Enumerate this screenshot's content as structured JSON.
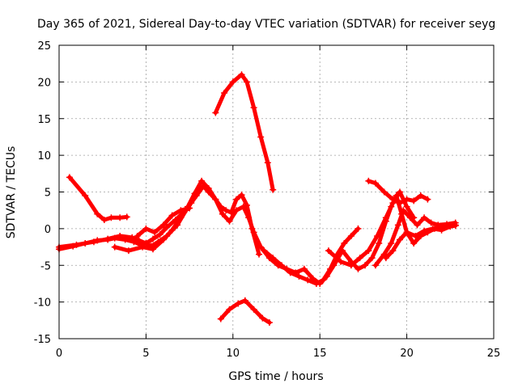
{
  "chart_data": {
    "type": "scatter",
    "title": "Day 365 of 2021, Sidereal Day-to-day VTEC variation (SDTVAR) for receiver seyg",
    "xlabel": "GPS time / hours",
    "ylabel": "SDTVAR / TECUs",
    "xlim": [
      0,
      25
    ],
    "ylim": [
      -15,
      25
    ],
    "xticks": [
      "0",
      "5",
      "10",
      "15",
      "20",
      "25"
    ],
    "yticks": [
      "25",
      "20",
      "15",
      "10",
      "5",
      "0",
      "-5",
      "-10",
      "-15"
    ],
    "grid": true,
    "color": "#ff0000",
    "series": [
      {
        "name": "track-1",
        "x": [
          0.6,
          1.5,
          2.2,
          2.6,
          3.0,
          3.5,
          3.9
        ],
        "y": [
          7,
          4.5,
          2,
          1.2,
          1.5,
          1.5,
          1.6
        ]
      },
      {
        "name": "track-2",
        "x": [
          0,
          0.8,
          1.5,
          2.2,
          2.8,
          3.2,
          3.8,
          4.3,
          4.7,
          5.0,
          5.4,
          5.8,
          6.2,
          6.7,
          7.2,
          7.6,
          7.9,
          8.3,
          8.6,
          9.0,
          9.3,
          9.6,
          9.9,
          10.2,
          10.5,
          10.8,
          11.1,
          11.5
        ],
        "y": [
          -2.8,
          -2.4,
          -2.0,
          -1.6,
          -1.5,
          -1.3,
          -1.5,
          -1.8,
          -2.2,
          -2.0,
          -1.4,
          -0.8,
          0.2,
          1.2,
          2.3,
          3.5,
          4.5,
          5.8,
          5.0,
          4.0,
          3.0,
          2.5,
          2.2,
          4.0,
          4.6,
          3.2,
          0.0,
          -3.5
        ]
      },
      {
        "name": "track-3",
        "x": [
          0,
          1.0,
          2.0,
          2.8,
          3.5,
          4.2,
          4.6,
          5.0,
          5.3,
          5.7,
          6.2,
          6.8,
          7.3,
          7.8,
          8.2,
          8.6,
          9.0,
          9.4,
          9.8,
          10.2,
          10.6,
          10.9,
          11.2,
          11.6,
          12.1,
          12.6,
          13.1,
          13.6,
          14.1,
          14.6,
          15.0,
          15.4,
          15.8,
          16.3,
          16.8,
          17.2,
          17.6,
          18.0,
          18.4,
          18.8,
          19.1,
          19.4,
          19.7,
          20.0,
          20.4,
          20.8,
          21.2,
          21.6,
          22.0,
          22.4,
          22.8
        ],
        "y": [
          -2.5,
          -2.2,
          -1.8,
          -1.4,
          -1.0,
          -1.2,
          -1.6,
          -2.0,
          -2.4,
          -1.8,
          -1.0,
          0.5,
          2.5,
          4.8,
          6.5,
          5.5,
          4.0,
          2.0,
          1.0,
          2.5,
          3.0,
          1.5,
          -0.5,
          -2.5,
          -4.0,
          -5.0,
          -5.5,
          -6.0,
          -5.5,
          -6.8,
          -7.5,
          -6.5,
          -5.0,
          -3.0,
          -4.5,
          -5.5,
          -5.0,
          -4.0,
          -2.0,
          1.0,
          3.0,
          4.5,
          2.0,
          -0.5,
          -2.0,
          -1.0,
          -0.5,
          0.0,
          0.3,
          0.4,
          0.5
        ]
      },
      {
        "name": "track-4",
        "x": [
          3.2,
          4.0,
          4.8,
          5.4,
          6.0,
          6.5,
          7.0,
          7.4
        ],
        "y": [
          -2.5,
          -3.0,
          -2.5,
          -2.8,
          -1.5,
          -0.2,
          1.5,
          3.0
        ]
      },
      {
        "name": "track-5",
        "x": [
          4.5,
          5.0,
          5.5,
          6.0,
          6.5,
          7.0,
          7.5
        ],
        "y": [
          -1.0,
          0.0,
          -0.5,
          0.5,
          1.8,
          2.5,
          2.8
        ]
      },
      {
        "name": "track-6",
        "x": [
          9.0,
          9.5,
          10.0,
          10.5,
          10.8,
          11.2,
          11.6,
          12.0,
          12.3
        ],
        "y": [
          15.8,
          18.5,
          20.0,
          21.0,
          20.0,
          16.5,
          12.5,
          9.0,
          5.3
        ]
      },
      {
        "name": "track-7",
        "x": [
          9.3,
          9.8,
          10.3,
          10.7,
          11.2,
          11.7,
          12.1
        ],
        "y": [
          -12.3,
          -11.0,
          -10.2,
          -9.8,
          -11.0,
          -12.2,
          -12.8
        ]
      },
      {
        "name": "track-8",
        "x": [
          11.8,
          12.3,
          12.8,
          13.3,
          13.8,
          14.3,
          14.8,
          15.2,
          15.6,
          16.0,
          16.4,
          16.8,
          17.2
        ],
        "y": [
          -3.0,
          -4.0,
          -5.0,
          -6.0,
          -6.5,
          -7.0,
          -7.5,
          -7.0,
          -5.5,
          -3.5,
          -2.0,
          -1.0,
          0.0
        ]
      },
      {
        "name": "track-9",
        "x": [
          15.5,
          16.2,
          16.8,
          17.3,
          17.8,
          18.3,
          18.8,
          19.2,
          19.6,
          20.0,
          20.4
        ],
        "y": [
          -3.0,
          -4.5,
          -5.0,
          -4.0,
          -3.0,
          -1.0,
          1.5,
          3.5,
          5.0,
          3.0,
          1.5
        ]
      },
      {
        "name": "track-10",
        "x": [
          17.8,
          18.2,
          18.7,
          19.2,
          19.6,
          20.0,
          20.4,
          20.8,
          21.2
        ],
        "y": [
          6.5,
          6.2,
          5.0,
          4.0,
          3.5,
          4.0,
          3.8,
          4.5,
          4.0
        ]
      },
      {
        "name": "track-11",
        "x": [
          18.2,
          18.7,
          19.1,
          19.5,
          19.8,
          20.2,
          20.6,
          21.0,
          21.4,
          21.8,
          22.3,
          22.8
        ],
        "y": [
          -5.0,
          -3.5,
          -2.0,
          0.5,
          2.5,
          1.5,
          0.5,
          1.5,
          0.8,
          0.5,
          0.6,
          0.8
        ]
      },
      {
        "name": "track-12",
        "x": [
          18.8,
          19.2,
          19.6,
          20.0,
          20.5,
          21.0,
          21.5,
          22.0,
          22.5,
          22.8
        ],
        "y": [
          -4.0,
          -3.0,
          -1.5,
          -0.5,
          -1.0,
          -0.3,
          0.0,
          -0.2,
          0.3,
          0.4
        ]
      }
    ]
  }
}
